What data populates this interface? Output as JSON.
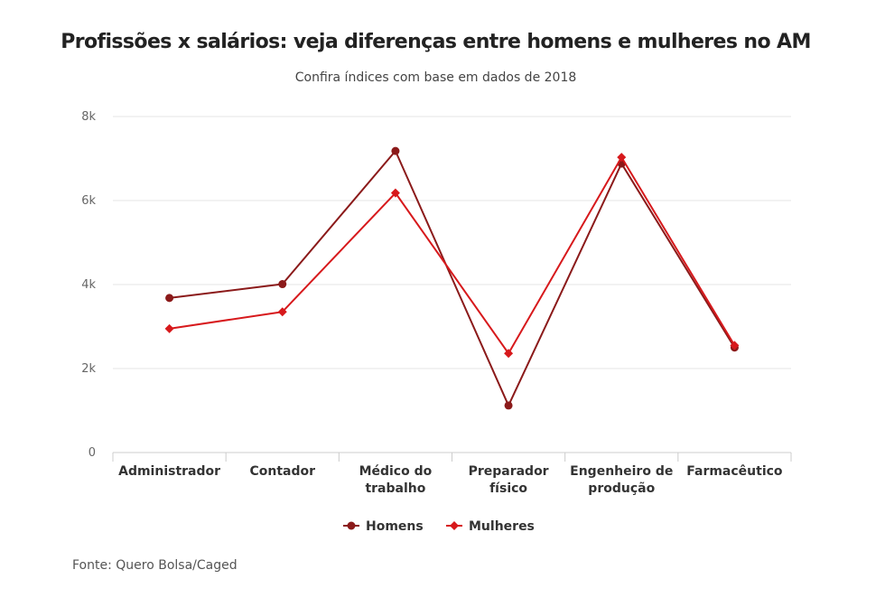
{
  "chart_data": {
    "type": "line",
    "title": "Profissões x salários: veja diferenças entre homens e mulheres no AM",
    "subtitle": "Confira índices com base em dados de 2018",
    "categories": [
      "Administrador",
      "Contador",
      "Médico do trabalho",
      "Preparador físico",
      "Engenheiro de produção",
      "Farmacêutico"
    ],
    "category_lines": [
      [
        "Administrador"
      ],
      [
        "Contador"
      ],
      [
        "Médico do",
        "trabalho"
      ],
      [
        "Preparador",
        "físico"
      ],
      [
        "Engenheiro de",
        "produção"
      ],
      [
        "Farmacêutico"
      ]
    ],
    "y_ticks": [
      {
        "value": 0,
        "label": "0"
      },
      {
        "value": 2000,
        "label": "2k"
      },
      {
        "value": 4000,
        "label": "4k"
      },
      {
        "value": 6000,
        "label": "6k"
      },
      {
        "value": 8000,
        "label": "8k"
      }
    ],
    "ylim": [
      0,
      8000
    ],
    "grid": true,
    "legend_position": "bottom-center",
    "series": [
      {
        "name": "Homens",
        "color": "#8b1a1a",
        "marker": "circle",
        "values": [
          3680,
          4010,
          7180,
          1120,
          6880,
          2500
        ]
      },
      {
        "name": "Mulheres",
        "color": "#d7191c",
        "marker": "diamond",
        "values": [
          2950,
          3350,
          6180,
          2360,
          7030,
          2550
        ]
      }
    ],
    "source": "Fonte: Quero Bolsa/Caged"
  }
}
